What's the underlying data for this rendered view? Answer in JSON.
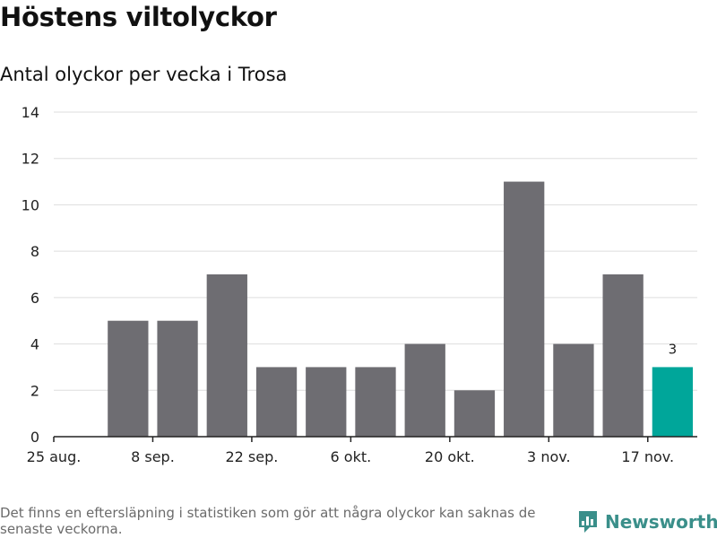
{
  "title": "Höstens viltolyckor",
  "subtitle": "Antal olyckor per vecka i Trosa",
  "footnote": "Det finns en eftersläpning i statistiken som gör att några olyckor kan saknas de senaste veckorna.",
  "brand": "Newsworthy",
  "colors": {
    "bar": "#6e6d72",
    "highlight": "#00a69a",
    "grid": "#dddddd",
    "axis": "#222222",
    "brand": "#3a8f8a"
  },
  "chart_data": {
    "type": "bar",
    "title": "Höstens viltolyckor",
    "subtitle": "Antal olyckor per vecka i Trosa",
    "xlabel": "",
    "ylabel": "",
    "weeks": 13,
    "values": [
      null,
      5,
      5,
      7,
      3,
      3,
      3,
      4,
      2,
      11,
      4,
      7,
      3
    ],
    "highlight_index": 12,
    "highlight_label": "3",
    "x_ticks": [
      {
        "index": 0,
        "label": "25 aug."
      },
      {
        "index": 2,
        "label": "8 sep."
      },
      {
        "index": 4,
        "label": "22 sep."
      },
      {
        "index": 6,
        "label": "6 okt."
      },
      {
        "index": 8,
        "label": "20 okt."
      },
      {
        "index": 10,
        "label": "3 nov."
      },
      {
        "index": 12,
        "label": "17 nov."
      }
    ],
    "yticks": [
      0,
      2,
      4,
      6,
      8,
      10,
      12,
      14
    ],
    "ylim": [
      0,
      14
    ],
    "grid": true
  }
}
